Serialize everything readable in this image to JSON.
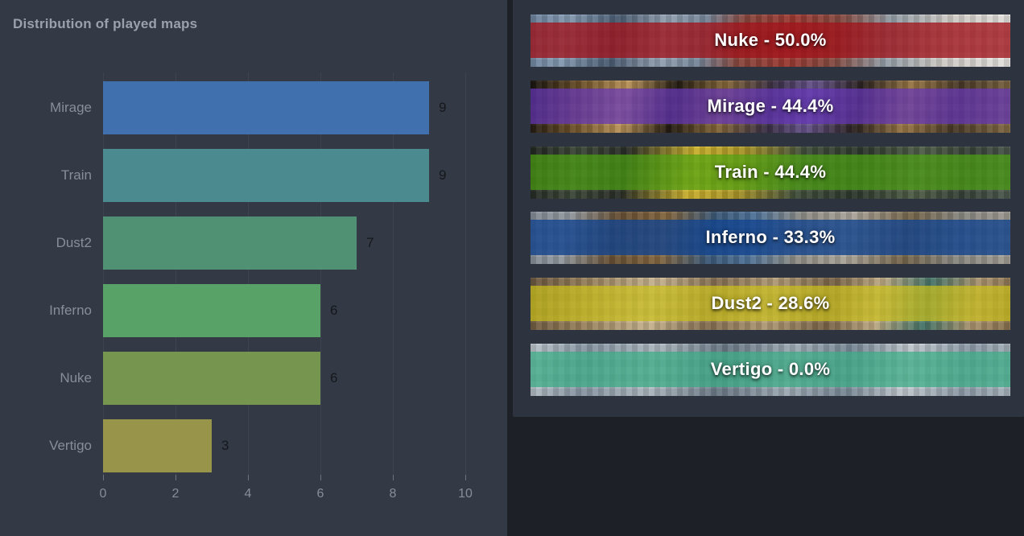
{
  "window": {
    "background": "#1d2127"
  },
  "chart_panel": {
    "background": "#333a46"
  },
  "chart_data": {
    "type": "bar",
    "orientation": "horizontal",
    "title": "Distribution of played maps",
    "categories": [
      "Mirage",
      "Train",
      "Dust2",
      "Inferno",
      "Nuke",
      "Vertigo"
    ],
    "values": [
      9,
      9,
      7,
      6,
      6,
      3
    ],
    "value_labels": [
      "9",
      "9",
      "7",
      "6",
      "6",
      "3"
    ],
    "bar_colors": [
      "#4070ad",
      "#4b8a8e",
      "#509173",
      "#58a268",
      "#76954e",
      "#98954a"
    ],
    "x_ticks": [
      "0",
      "2",
      "4",
      "6",
      "8",
      "10"
    ],
    "xlim": [
      0,
      10
    ],
    "grid": true,
    "legend": false,
    "title_color": "#9aa1ac",
    "axis_label_color": "#878e99",
    "value_label_color": "#15171b",
    "gridline_color": "#3d4450"
  },
  "map_list": {
    "card_background": "#2d3440",
    "items": [
      {
        "key": "nuke",
        "name": "Nuke",
        "percent": "50.0%",
        "label": "Nuke - 50.0%",
        "overlay_color": "rgba(158,18,26,0.78)"
      },
      {
        "key": "mirage",
        "name": "Mirage",
        "percent": "44.4%",
        "label": "Mirage - 44.4%",
        "overlay_color": "rgba(100,52,182,0.72)"
      },
      {
        "key": "train",
        "name": "Train",
        "percent": "44.4%",
        "label": "Train - 44.4%",
        "overlay_color": "rgba(74,158,16,0.70)"
      },
      {
        "key": "inferno",
        "name": "Inferno",
        "percent": "33.3%",
        "label": "Inferno - 33.3%",
        "overlay_color": "rgba(18,66,140,0.80)"
      },
      {
        "key": "dust2",
        "name": "Dust2",
        "percent": "28.6%",
        "label": "Dust2 - 28.6%",
        "overlay_color": "rgba(200,190,24,0.70)"
      },
      {
        "key": "vertigo",
        "name": "Vertigo",
        "percent": "0.0%",
        "label": "Vertigo - 0.0%",
        "overlay_color": "rgba(56,170,130,0.72)"
      }
    ]
  }
}
